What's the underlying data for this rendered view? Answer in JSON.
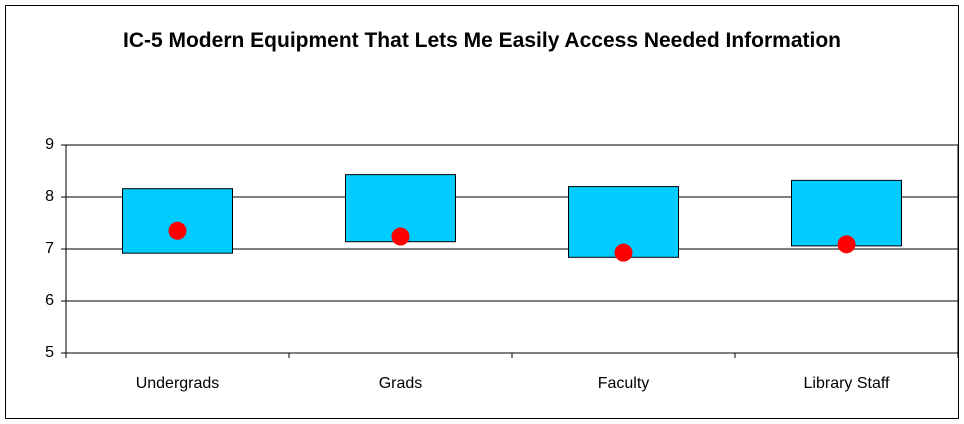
{
  "chart_data": {
    "type": "range_dot",
    "title": "IC-5 Modern Equipment That Lets Me Easily Access Needed Information",
    "categories": [
      "Undergrads",
      "Grads",
      "Faculty",
      "Library Staff"
    ],
    "low": [
      6.92,
      7.14,
      6.84,
      7.06
    ],
    "high": [
      8.16,
      8.43,
      8.2,
      8.32
    ],
    "values": [
      7.35,
      7.24,
      6.93,
      7.09
    ],
    "bar_color": "#00ccff",
    "dot_color": "#ff0000",
    "ylim": [
      5,
      9
    ],
    "yticks": [
      5,
      6,
      7,
      8,
      9
    ],
    "grid": true
  }
}
